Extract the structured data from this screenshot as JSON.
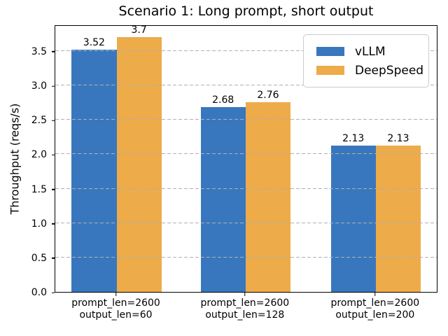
{
  "title": "Scenario 1: Long prompt, short output",
  "chart_data": {
    "type": "bar",
    "title": "Scenario 1: Long prompt, short output",
    "xlabel": "",
    "ylabel": "Throughput (reqs/s)",
    "categories": [
      [
        "prompt_len=2600",
        "output_len=60"
      ],
      [
        "prompt_len=2600",
        "output_len=128"
      ],
      [
        "prompt_len=2600",
        "output_len=200"
      ]
    ],
    "series": [
      {
        "name": "vLLM",
        "color": "#3877bd",
        "values": [
          3.52,
          2.68,
          2.13
        ],
        "value_labels": [
          "3.52",
          "2.68",
          "2.13"
        ]
      },
      {
        "name": "DeepSpeed",
        "color": "#edab49",
        "values": [
          3.7,
          2.76,
          2.13
        ],
        "value_labels": [
          "3.7",
          "2.76",
          "2.13"
        ]
      }
    ],
    "yticks": [
      0.0,
      0.5,
      1.0,
      1.5,
      2.0,
      2.5,
      3.0,
      3.5
    ],
    "ytick_labels": [
      "0.0",
      "0.5",
      "1.0",
      "1.5",
      "2.0",
      "2.5",
      "3.0",
      "3.5"
    ],
    "ylim": [
      0,
      3.885
    ],
    "grid": {
      "axis": "y",
      "style": "dashed",
      "color": "#b0b0b0"
    },
    "legend": {
      "position": "upper right",
      "entries": [
        "vLLM",
        "DeepSpeed"
      ]
    }
  }
}
